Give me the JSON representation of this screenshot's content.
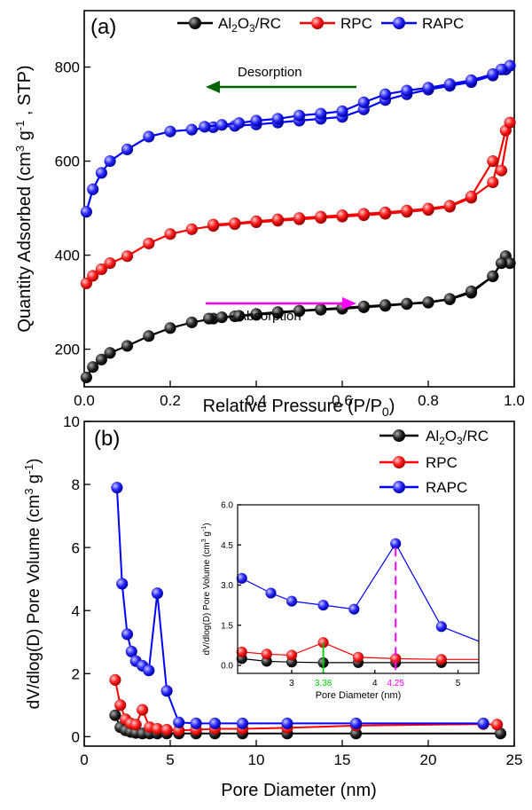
{
  "colors": {
    "al2o3rc": "#000000",
    "rpc": "#ff0000",
    "rapc": "#0000ff",
    "desorption_arrow": "#006400",
    "absorption_arrow": "#ff00ff",
    "mark_3_38": "#00cc00",
    "mark_4_25": "#ff00ff"
  },
  "chart_data": [
    {
      "type": "line",
      "panel_label": "(a)",
      "xlabel": "Relative Pressure (P/P",
      "xlabel_sub": "0",
      "xlabel_end": ")",
      "ylabel": "Quantity Adsorbed (cm",
      "ylabel_sup1": "3",
      "ylabel_mid": " g",
      "ylabel_sup2": "-1",
      "ylabel_end": " , STP)",
      "xlim": [
        0,
        1.0
      ],
      "ylim": [
        120,
        920
      ],
      "x_ticks": [
        "0.0",
        "0.2",
        "0.4",
        "0.6",
        "0.8",
        "1.0"
      ],
      "y_ticks": [
        "200",
        "400",
        "600",
        "800"
      ],
      "legend_position": "top-right",
      "annotations": {
        "desorption": "Desorption",
        "absorption": "Absorption"
      },
      "series": [
        {
          "name": "Al2O3/RC",
          "legend_parts": [
            "Al",
            "2",
            "O",
            "3",
            "/RC"
          ],
          "adsorption": [
            [
              0.005,
              140
            ],
            [
              0.02,
              162
            ],
            [
              0.04,
              178
            ],
            [
              0.06,
              192
            ],
            [
              0.1,
              207
            ],
            [
              0.15,
              228
            ],
            [
              0.2,
              245
            ],
            [
              0.25,
              257
            ],
            [
              0.3,
              265
            ],
            [
              0.35,
              270
            ],
            [
              0.4,
              273
            ],
            [
              0.45,
              277
            ],
            [
              0.5,
              281
            ],
            [
              0.55,
              284
            ],
            [
              0.6,
              286
            ],
            [
              0.65,
              289
            ],
            [
              0.7,
              292
            ],
            [
              0.75,
              296
            ],
            [
              0.8,
              299
            ],
            [
              0.85,
              306
            ],
            [
              0.9,
              320
            ],
            [
              0.95,
              355
            ],
            [
              0.98,
              398
            ]
          ],
          "desorption": [
            [
              0.99,
              383
            ],
            [
              0.97,
              383
            ],
            [
              0.95,
              355
            ],
            [
              0.9,
              323
            ],
            [
              0.85,
              307
            ],
            [
              0.8,
              300
            ],
            [
              0.75,
              297
            ],
            [
              0.7,
              294
            ],
            [
              0.65,
              291
            ],
            [
              0.6,
              288
            ],
            [
              0.55,
              285
            ],
            [
              0.5,
              282
            ],
            [
              0.45,
              279
            ],
            [
              0.4,
              275
            ],
            [
              0.36,
              271
            ],
            [
              0.32,
              268
            ],
            [
              0.29,
              265
            ]
          ]
        },
        {
          "name": "RPC",
          "adsorption": [
            [
              0.005,
              340
            ],
            [
              0.02,
              356
            ],
            [
              0.04,
              370
            ],
            [
              0.06,
              383
            ],
            [
              0.1,
              398
            ],
            [
              0.15,
              425
            ],
            [
              0.2,
              445
            ],
            [
              0.25,
              455
            ],
            [
              0.3,
              462
            ],
            [
              0.35,
              466
            ],
            [
              0.4,
              470
            ],
            [
              0.45,
              473
            ],
            [
              0.5,
              476
            ],
            [
              0.55,
              479
            ],
            [
              0.6,
              482
            ],
            [
              0.65,
              485
            ],
            [
              0.7,
              488
            ],
            [
              0.75,
              492
            ],
            [
              0.8,
              496
            ],
            [
              0.85,
              503
            ],
            [
              0.9,
              522
            ],
            [
              0.95,
              555
            ],
            [
              0.98,
              665
            ]
          ],
          "desorption": [
            [
              0.99,
              682
            ],
            [
              0.97,
              580
            ],
            [
              0.95,
              600
            ],
            [
              0.9,
              525
            ],
            [
              0.85,
              505
            ],
            [
              0.8,
              499
            ],
            [
              0.75,
              495
            ],
            [
              0.7,
              491
            ],
            [
              0.65,
              488
            ],
            [
              0.6,
              485
            ],
            [
              0.55,
              482
            ],
            [
              0.5,
              479
            ],
            [
              0.45,
              476
            ],
            [
              0.4,
              472
            ],
            [
              0.35,
              468
            ],
            [
              0.3,
              465
            ]
          ]
        },
        {
          "name": "RAPC",
          "adsorption": [
            [
              0.005,
              492
            ],
            [
              0.02,
              540
            ],
            [
              0.04,
              575
            ],
            [
              0.06,
              600
            ],
            [
              0.1,
              625
            ],
            [
              0.15,
              652
            ],
            [
              0.2,
              663
            ],
            [
              0.25,
              667
            ],
            [
              0.3,
              672
            ],
            [
              0.35,
              675
            ],
            [
              0.4,
              678
            ],
            [
              0.45,
              682
            ],
            [
              0.5,
              686
            ],
            [
              0.55,
              690
            ],
            [
              0.6,
              694
            ],
            [
              0.65,
              710
            ],
            [
              0.7,
              730
            ],
            [
              0.75,
              742
            ],
            [
              0.8,
              752
            ],
            [
              0.85,
              760
            ],
            [
              0.9,
              768
            ],
            [
              0.95,
              782
            ],
            [
              0.98,
              795
            ]
          ],
          "desorption": [
            [
              0.99,
              803
            ],
            [
              0.97,
              795
            ],
            [
              0.95,
              785
            ],
            [
              0.9,
              772
            ],
            [
              0.85,
              764
            ],
            [
              0.8,
              756
            ],
            [
              0.75,
              750
            ],
            [
              0.7,
              742
            ],
            [
              0.65,
              725
            ],
            [
              0.6,
              706
            ],
            [
              0.55,
              701
            ],
            [
              0.5,
              697
            ],
            [
              0.45,
              690
            ],
            [
              0.4,
              686
            ],
            [
              0.36,
              681
            ],
            [
              0.32,
              677
            ],
            [
              0.28,
              673
            ]
          ]
        }
      ]
    },
    {
      "type": "line",
      "panel_label": "(b)",
      "xlabel": "Pore Diameter (nm)",
      "ylabel": "dV/dlog(D) Pore Volume (cm",
      "ylabel_sup1": "3",
      "ylabel_mid": " g",
      "ylabel_sup2": "-1",
      "ylabel_end": ")",
      "xlim": [
        0,
        25
      ],
      "ylim": [
        -0.3,
        10
      ],
      "x_ticks": [
        "0",
        "5",
        "10",
        "15",
        "20",
        "25"
      ],
      "y_ticks": [
        "0",
        "2",
        "4",
        "6",
        "8",
        "10"
      ],
      "legend_position": "top-right",
      "series": [
        {
          "name": "Al2O3/RC",
          "legend_parts": [
            "Al",
            "2",
            "O",
            "3",
            "/RC"
          ],
          "points": [
            [
              1.8,
              0.68
            ],
            [
              2.1,
              0.3
            ],
            [
              2.4,
              0.2
            ],
            [
              2.7,
              0.15
            ],
            [
              3.0,
              0.12
            ],
            [
              3.38,
              0.1
            ],
            [
              3.8,
              0.1
            ],
            [
              4.25,
              0.1
            ],
            [
              4.8,
              0.1
            ],
            [
              5.5,
              0.1
            ],
            [
              6.5,
              0.1
            ],
            [
              7.6,
              0.1
            ],
            [
              9.2,
              0.1
            ],
            [
              11.8,
              0.1
            ],
            [
              15.8,
              0.1
            ],
            [
              24.2,
              0.1
            ]
          ]
        },
        {
          "name": "RPC",
          "points": [
            [
              1.8,
              1.8
            ],
            [
              2.1,
              1.0
            ],
            [
              2.4,
              0.55
            ],
            [
              2.7,
              0.42
            ],
            [
              3.0,
              0.38
            ],
            [
              3.38,
              0.85
            ],
            [
              3.8,
              0.3
            ],
            [
              4.25,
              0.25
            ],
            [
              4.8,
              0.22
            ],
            [
              5.5,
              0.2
            ],
            [
              6.5,
              0.22
            ],
            [
              7.6,
              0.25
            ],
            [
              9.2,
              0.25
            ],
            [
              11.8,
              0.28
            ],
            [
              15.8,
              0.35
            ],
            [
              23.2,
              0.4
            ],
            [
              24.0,
              0.38
            ]
          ]
        },
        {
          "name": "RAPC",
          "points": [
            [
              1.9,
              7.9
            ],
            [
              2.2,
              4.85
            ],
            [
              2.5,
              3.25
            ],
            [
              2.75,
              2.7
            ],
            [
              3.0,
              2.4
            ],
            [
              3.38,
              2.25
            ],
            [
              3.75,
              2.1
            ],
            [
              4.25,
              4.55
            ],
            [
              4.8,
              1.45
            ],
            [
              5.5,
              0.45
            ],
            [
              6.5,
              0.42
            ],
            [
              7.6,
              0.42
            ],
            [
              9.2,
              0.42
            ],
            [
              11.8,
              0.42
            ],
            [
              15.8,
              0.42
            ],
            [
              23.2,
              0.42
            ]
          ]
        }
      ],
      "inset": {
        "xlabel": "Pore Diameter (nm)",
        "ylabel": "dV/dlog(D) Pore Volume (cm",
        "ylabel_sup1": "3",
        "ylabel_mid": " g",
        "ylabel_sup2": "-1",
        "ylabel_end": ")",
        "xlim": [
          2.35,
          5.25
        ],
        "ylim": [
          -0.3,
          6.0
        ],
        "x_ticks": [
          "3",
          "4",
          "5"
        ],
        "y_ticks": [
          "0.0",
          "1.5",
          "3.0",
          "4.5",
          "6.0"
        ],
        "marks": [
          {
            "x": 3.38,
            "label": "3.38"
          },
          {
            "x": 4.25,
            "label": "4.25"
          }
        ],
        "series": [
          {
            "name": "Al2O3/RC",
            "points": [
              [
                2.4,
                0.25
              ],
              [
                2.7,
                0.15
              ],
              [
                3.0,
                0.12
              ],
              [
                3.38,
                0.1
              ],
              [
                3.8,
                0.1
              ],
              [
                4.25,
                0.1
              ],
              [
                4.8,
                0.1
              ],
              [
                5.25,
                0.1
              ]
            ]
          },
          {
            "name": "RPC",
            "points": [
              [
                2.4,
                0.5
              ],
              [
                2.7,
                0.42
              ],
              [
                3.0,
                0.38
              ],
              [
                3.38,
                0.85
              ],
              [
                3.8,
                0.3
              ],
              [
                4.25,
                0.25
              ],
              [
                4.8,
                0.22
              ],
              [
                5.25,
                0.22
              ]
            ]
          },
          {
            "name": "RAPC",
            "points": [
              [
                2.4,
                3.25
              ],
              [
                2.75,
                2.7
              ],
              [
                3.0,
                2.4
              ],
              [
                3.38,
                2.25
              ],
              [
                3.75,
                2.1
              ],
              [
                4.25,
                4.55
              ],
              [
                4.8,
                1.45
              ],
              [
                5.25,
                0.9
              ]
            ]
          }
        ]
      }
    }
  ]
}
